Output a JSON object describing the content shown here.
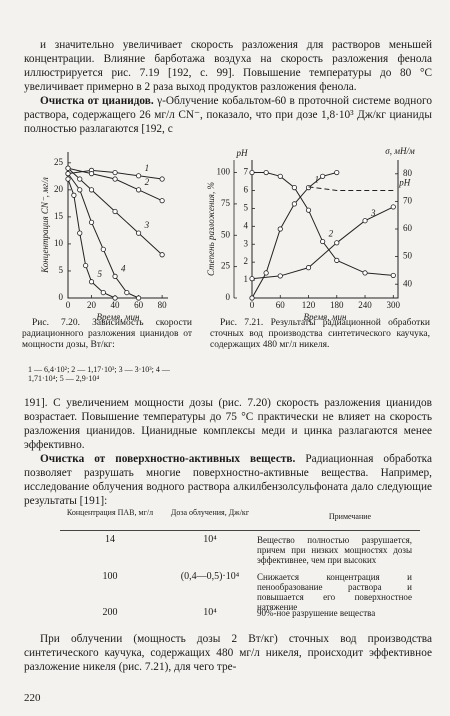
{
  "paragraphs_top": [
    {
      "text": "и значительно увеличивает скорость разложения для растворов меньшей концентрации. Влияние барботажа воздуха на скорость разложения фенола иллюстрируется рис. 7.19 [192, с. 99]. Повышение температуры до 80 °С увеличивает примерно в 2 раза выход продуктов разложения фенола."
    },
    {
      "lead": "Очистка от цианидов.",
      "text": "γ-Облучение кобальтом-60 в проточной системе водного раствора, содержащего 26 мг/л CN⁻, показало, что при дозе 1,8·10³ Дж/кг цианиды полностью разлагаются [192, с"
    }
  ],
  "fig_7_20": {
    "y_label": "Концентрация CN⁻, мг/л",
    "x_label": "Время, мин",
    "xlim": [
      0,
      85
    ],
    "ylim": [
      0,
      27
    ],
    "xticks": [
      0,
      20,
      40,
      60,
      80
    ],
    "yticks": [
      0,
      5,
      10,
      15,
      20,
      25
    ],
    "series": [
      {
        "name": "1",
        "x": [
          0,
          20,
          40,
          60,
          80
        ],
        "values": [
          23,
          23.6,
          23.2,
          22.6,
          22
        ]
      },
      {
        "name": "2",
        "x": [
          0,
          20,
          40,
          60,
          80
        ],
        "values": [
          24,
          23,
          22,
          20,
          18
        ]
      },
      {
        "name": "3",
        "x": [
          0,
          10,
          20,
          40,
          60,
          80
        ],
        "values": [
          24,
          22,
          20,
          16,
          12,
          8
        ]
      },
      {
        "name": "4",
        "x": [
          0,
          10,
          20,
          30,
          40,
          50,
          60
        ],
        "values": [
          23,
          20,
          14,
          9,
          4,
          1,
          0
        ]
      },
      {
        "name": "5",
        "x": [
          0,
          5,
          10,
          15,
          20,
          30,
          40
        ],
        "values": [
          22,
          19,
          12,
          6,
          3,
          1,
          0
        ]
      }
    ],
    "caption": "Рис. 7.20. Зависимость скорости радиационного разложения цианидов от мощности дозы, Вт/кг:",
    "legend": [
      "1 — 6,4·10²;",
      "2 — 1,17·10³;",
      "3 — 3·10³;",
      "4 — 1,71·10⁴;",
      "5 — 2,9·10⁴"
    ]
  },
  "fig_7_21": {
    "y_label": "Степень разложения, %",
    "x_label": "Время, мин",
    "ph_label": "pH",
    "y2_label": "σ, мН/м",
    "xlim": [
      0,
      310
    ],
    "ylim": [
      0,
      110
    ],
    "phlim": [
      0,
      7.7
    ],
    "y2lim": [
      35,
      85
    ],
    "xticks": [
      0,
      60,
      120,
      180,
      240,
      300
    ],
    "yticks": [
      0,
      25,
      50,
      75,
      100
    ],
    "phticks": [
      1,
      2,
      3,
      4,
      5,
      6,
      7
    ],
    "y2ticks": [
      40,
      50,
      60,
      70,
      80
    ],
    "series": [
      {
        "name": "1",
        "axis": "y",
        "x": [
          0,
          30,
          60,
          90,
          120,
          150,
          180
        ],
        "values": [
          0,
          20,
          55,
          75,
          88,
          97,
          100
        ]
      },
      {
        "name": "2",
        "axis": "y",
        "x": [
          0,
          30,
          60,
          90,
          120,
          150,
          180,
          240,
          300
        ],
        "values": [
          100,
          100,
          97,
          88,
          70,
          45,
          30,
          20,
          18
        ]
      },
      {
        "name": "3",
        "axis": "y2",
        "x": [
          0,
          60,
          120,
          180,
          240,
          300
        ],
        "values": [
          42,
          43,
          46,
          55,
          63,
          68
        ]
      },
      {
        "name": "pH",
        "axis": "ph",
        "dashed": true,
        "x": [
          120,
          180,
          240,
          300
        ],
        "values": [
          6.2,
          6,
          6,
          6
        ]
      }
    ],
    "caption": "Рис. 7.21. Результаты радиационной обработки сточных вод производства синтетического каучука, содержащих 480 мг/л никеля."
  },
  "paragraphs_mid": [
    {
      "text": "191]. С увеличением мощности дозы (рис. 7.20) скорость разложения цианидов возрастает. Повышение температуры до 75 °С практически не влияет на скорость разложения цианидов. Цианидные комплексы меди и цинка разлагаются менее эффективно."
    },
    {
      "lead": "Очистка от поверхностно-активных веществ.",
      "text": "Радиационная обработка позволяет разрушать многие поверхностно-активные вещества. Например, исследование облучения водного раствора алкилбензолсульфоната дало следующие результаты [191]:"
    }
  ],
  "table": {
    "header": [
      "Концентрация ПАВ, мг/л",
      "Доза облучения, Дж/кг",
      "Примечание"
    ],
    "rows": [
      [
        "14",
        "10⁴",
        "Вещество полностью разрушается, причем при низких мощностях дозы эффективнее, чем при высоких"
      ],
      [
        "100",
        "(0,4—0,5)·10⁴",
        "Снижается концентрация и пенообразование раствора и повышается его поверхностное натяжение"
      ],
      [
        "200",
        "10⁴",
        "90%-ное разрушение вещества"
      ]
    ]
  },
  "paragraph_bottom": "При облучении (мощность дозы 2 Вт/кг) сточных вод производства синтетического каучука, содержащих 480 мг/л никеля, происходит эффективное разложение никеля (рис. 7.21), для чего тре-",
  "page_number": "220"
}
